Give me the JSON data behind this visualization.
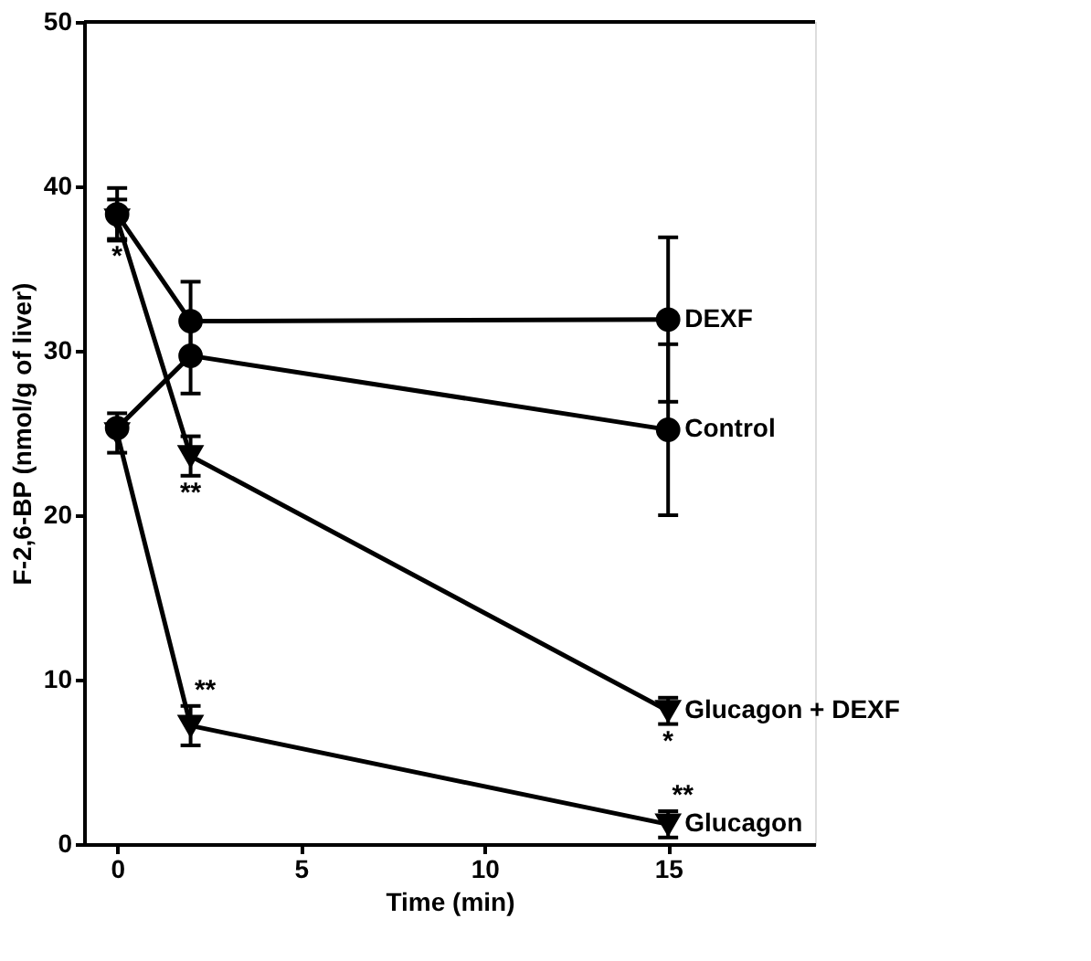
{
  "chart_data": {
    "type": "line",
    "xlabel": "Time (min)",
    "ylabel": "F-2,6-BP (nmol/g of liver)",
    "xlim": [
      -0.9,
      19
    ],
    "xticks": [
      0,
      5,
      10,
      15
    ],
    "ylim": [
      0,
      50
    ],
    "yticks": [
      0,
      10,
      20,
      30,
      40,
      50
    ],
    "grid": false,
    "legend": "right",
    "line_style": "solid",
    "series": [
      {
        "name": "DEXF",
        "color": "#000000",
        "marker": "circle",
        "x": [
          0,
          2,
          15
        ],
        "values": [
          38.3,
          31.8,
          31.9
        ],
        "errors": [
          1.6,
          2.4,
          5
        ]
      },
      {
        "name": "Control",
        "color": "#000000",
        "marker": "circle",
        "x": [
          0,
          2,
          15
        ],
        "values": [
          25.3,
          29.7,
          25.2
        ],
        "errors": [
          null,
          2.3,
          5.2
        ]
      },
      {
        "name": "Glucagon + DEXF",
        "color": "#000000",
        "marker": "triangle",
        "x": [
          0,
          2,
          15
        ],
        "values": [
          38,
          23.6,
          8.1
        ],
        "errors": [
          1.2,
          1.2,
          0.8
        ]
      },
      {
        "name": "Glucagon",
        "color": "#000000",
        "marker": "triangle",
        "x": [
          0,
          2,
          15
        ],
        "values": [
          25,
          7.2,
          1.2
        ],
        "errors": [
          1.2,
          1.2,
          0.8
        ]
      }
    ],
    "ref_lines": [
      {
        "axis": "y",
        "value": 50,
        "label": null,
        "color": "#000000",
        "line_style": "solid"
      }
    ],
    "annotations": [
      {
        "text": "*",
        "x": 0,
        "y": 36.8
      },
      {
        "text": "**",
        "x": 2,
        "y": 22.4
      },
      {
        "text": "**",
        "x": 2,
        "y": 8.4
      },
      {
        "text": "*",
        "x": 15,
        "y": 7.3
      },
      {
        "text": "**",
        "x": 15,
        "y": 2
      }
    ]
  }
}
